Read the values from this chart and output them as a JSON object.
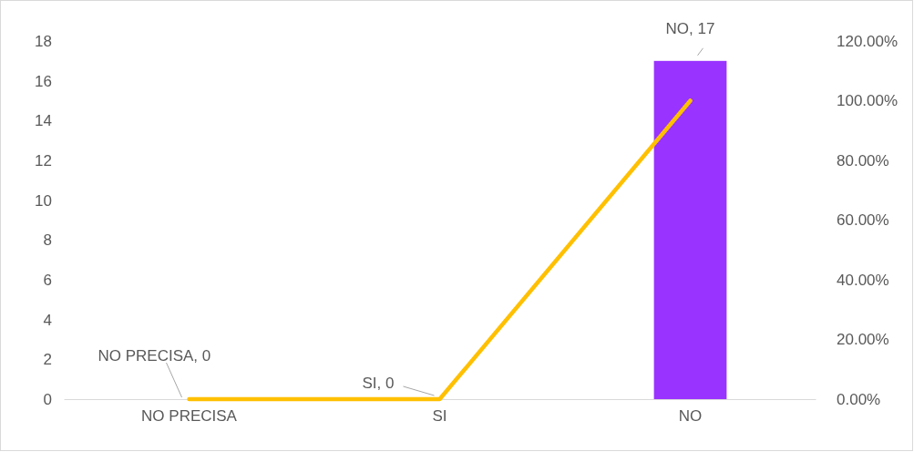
{
  "chart_data": {
    "type": "bar",
    "categories": [
      "NO PRECISA",
      "SI",
      "NO"
    ],
    "series": [
      {
        "color": "#9933ff",
        "values": [
          0,
          0,
          17
        ],
        "value_labels": [
          "NO PRECISA, 0",
          "SI, 0",
          "NO, 17"
        ]
      },
      {
        "type": "line",
        "axis": "y2",
        "color": "#ffc000",
        "values": [
          0,
          0,
          100
        ]
      }
    ],
    "ylim": [
      0,
      18
    ],
    "yticks": [
      0,
      2,
      4,
      6,
      8,
      10,
      12,
      14,
      16,
      18
    ],
    "y2lim": [
      0,
      120
    ],
    "y2ticks": [
      {
        "value": 0,
        "label": "0.00%"
      },
      {
        "value": 20,
        "label": "20.00%"
      },
      {
        "value": 40,
        "label": "40.00%"
      },
      {
        "value": 60,
        "label": "60.00%"
      },
      {
        "value": 80,
        "label": "80.00%"
      },
      {
        "value": 100,
        "label": "100.00%"
      },
      {
        "value": 120,
        "label": "120.00%"
      }
    ],
    "grid": false,
    "line_style": "solid",
    "marker": "none"
  }
}
